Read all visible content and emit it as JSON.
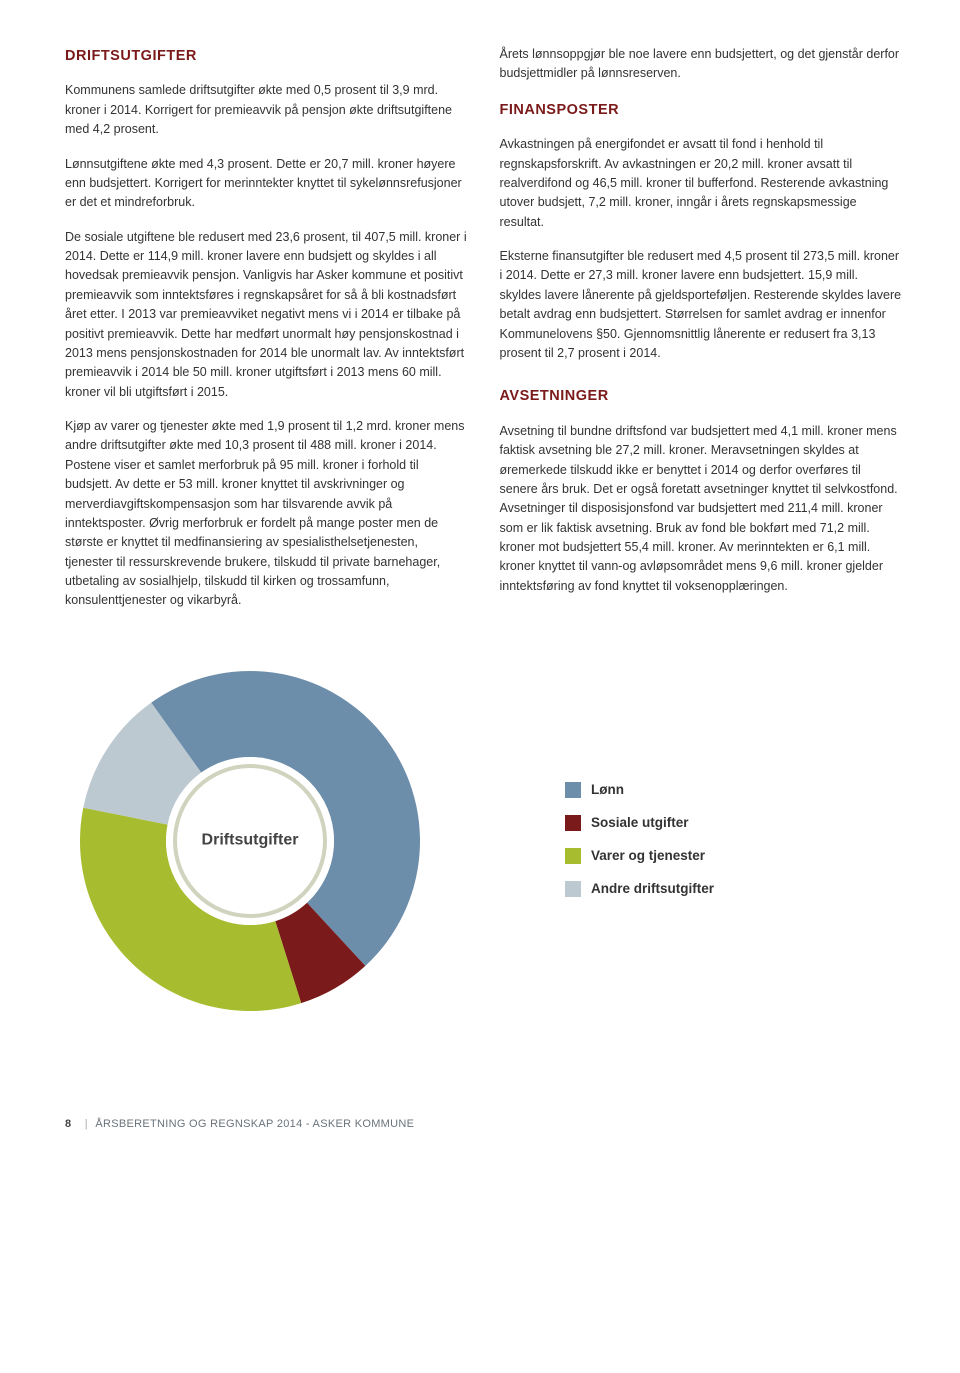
{
  "left": {
    "heading": "DRIFTSUTGIFTER",
    "p1": "Kommunens samlede driftsutgifter økte med 0,5 prosent til 3,9 mrd. kroner i 2014. Korrigert for premieavvik på pensjon økte driftsutgiftene med 4,2 prosent.",
    "p2": "Lønnsutgiftene økte med 4,3 prosent. Dette er 20,7 mill. kroner høyere enn budsjettert. Korrigert for merinntekter knyttet til sykelønnsrefusjoner er det et mindreforbruk.",
    "p3": "De sosiale utgiftene ble redusert med 23,6 prosent, til 407,5 mill. kroner i 2014. Dette er 114,9 mill. kroner lavere enn budsjett og skyldes i all hovedsak premieavvik pensjon. Vanligvis har Asker kommune et positivt premieavvik som inntektsføres i regnskapsåret for så å bli kostnadsført året etter. I 2013 var premieavviket negativt mens vi i 2014 er tilbake på positivt premieavvik. Dette har medført unormalt høy pensjonskostnad i 2013 mens pensjonskostnaden for 2014 ble unormalt lav. Av inntektsført premieavvik i 2014 ble 50 mill. kroner utgiftsført i 2013 mens 60 mill. kroner vil bli utgiftsført i 2015.",
    "p4": "Kjøp av varer og tjenester økte med 1,9 prosent til 1,2 mrd. kroner mens andre driftsutgifter økte med 10,3 prosent til 488 mill. kroner i 2014. Postene viser et samlet merforbruk på 95 mill. kroner i forhold til budsjett. Av dette er 53 mill. kroner knyttet til avskrivninger og merverdiavgiftskompensasjon som har tilsvarende avvik på inntektsposter. Øvrig merforbruk er fordelt på mange poster men de største er knyttet til medfinansiering av spesialisthelsetjenesten, tjenester til ressurskrevende brukere, tilskudd til private barnehager, utbetaling av sosialhjelp, tilskudd til kirken og trossamfunn, konsulenttjenester og vikarbyrå."
  },
  "right": {
    "intro": "Årets lønnsoppgjør ble noe lavere enn budsjettert, og det gjenstår derfor budsjettmidler på lønnsreserven.",
    "finansposter_heading": "FINANSPOSTER",
    "fp1": "Avkastningen på energifondet er avsatt til fond i henhold til regnskapsforskrift. Av avkastningen er 20,2 mill. kroner avsatt til realverdifond og 46,5 mill. kroner til bufferfond. Resterende avkastning utover budsjett, 7,2 mill. kroner, inngår i årets regnskapsmessige resultat.",
    "fp2": "Eksterne finansutgifter ble redusert med 4,5 prosent til 273,5 mill. kroner i 2014. Dette er 27,3 mill. kroner lavere enn budsjettert. 15,9 mill. skyldes lavere lånerente på gjeldsporteføljen. Resterende skyldes lavere betalt avdrag enn budsjettert. Størrelsen for samlet avdrag er innenfor Kommunelovens §50. Gjennomsnittlig lånerente er redusert fra 3,13 prosent til 2,7 prosent i 2014.",
    "avsetninger_heading": "AVSETNINGER",
    "av1": "Avsetning til bundne driftsfond var budsjettert med 4,1 mill. kroner mens faktisk avsetning ble 27,2 mill. kroner. Meravsetningen skyldes at øremerkede tilskudd ikke er benyttet i 2014 og derfor overføres til senere års bruk. Det er også foretatt avsetninger knyttet til selvkostfond. Avsetninger til disposisjonsfond var budsjettert med 211,4 mill. kroner som er lik faktisk avsetning. Bruk av fond ble bokført med 71,2 mill. kroner mot budsjettert 55,4 mill. kroner. Av merinntekten er 6,1 mill. kroner knyttet til vann-og avløpsområdet mens 9,6 mill. kroner gjelder inntektsføring av fond knyttet til voksenopplæringen."
  },
  "chart": {
    "title": "Driftsutgifter",
    "type": "donut",
    "background_color": "#ffffff",
    "ring_inner_radius": 84,
    "ring_outer_radius": 170,
    "inner_circle_stroke": "#d0d3bd",
    "inner_circle_stroke_width": 4,
    "slices": [
      {
        "label": "Lønn",
        "value": 48,
        "color": "#6c8eaa"
      },
      {
        "label": "Sosiale utgifter",
        "value": 7,
        "color": "#7b1a1a"
      },
      {
        "label": "Varer og tjenester",
        "value": 33,
        "color": "#a8bc2f"
      },
      {
        "label": "Andre driftsutgifter",
        "value": 12,
        "color": "#bcc9d1"
      }
    ],
    "legend_font_size": 13.5,
    "title_font_size": 16
  },
  "footer": {
    "page": "8",
    "text": "ÅRSBERETNING OG REGNSKAP 2014 - ASKER KOMMUNE"
  }
}
